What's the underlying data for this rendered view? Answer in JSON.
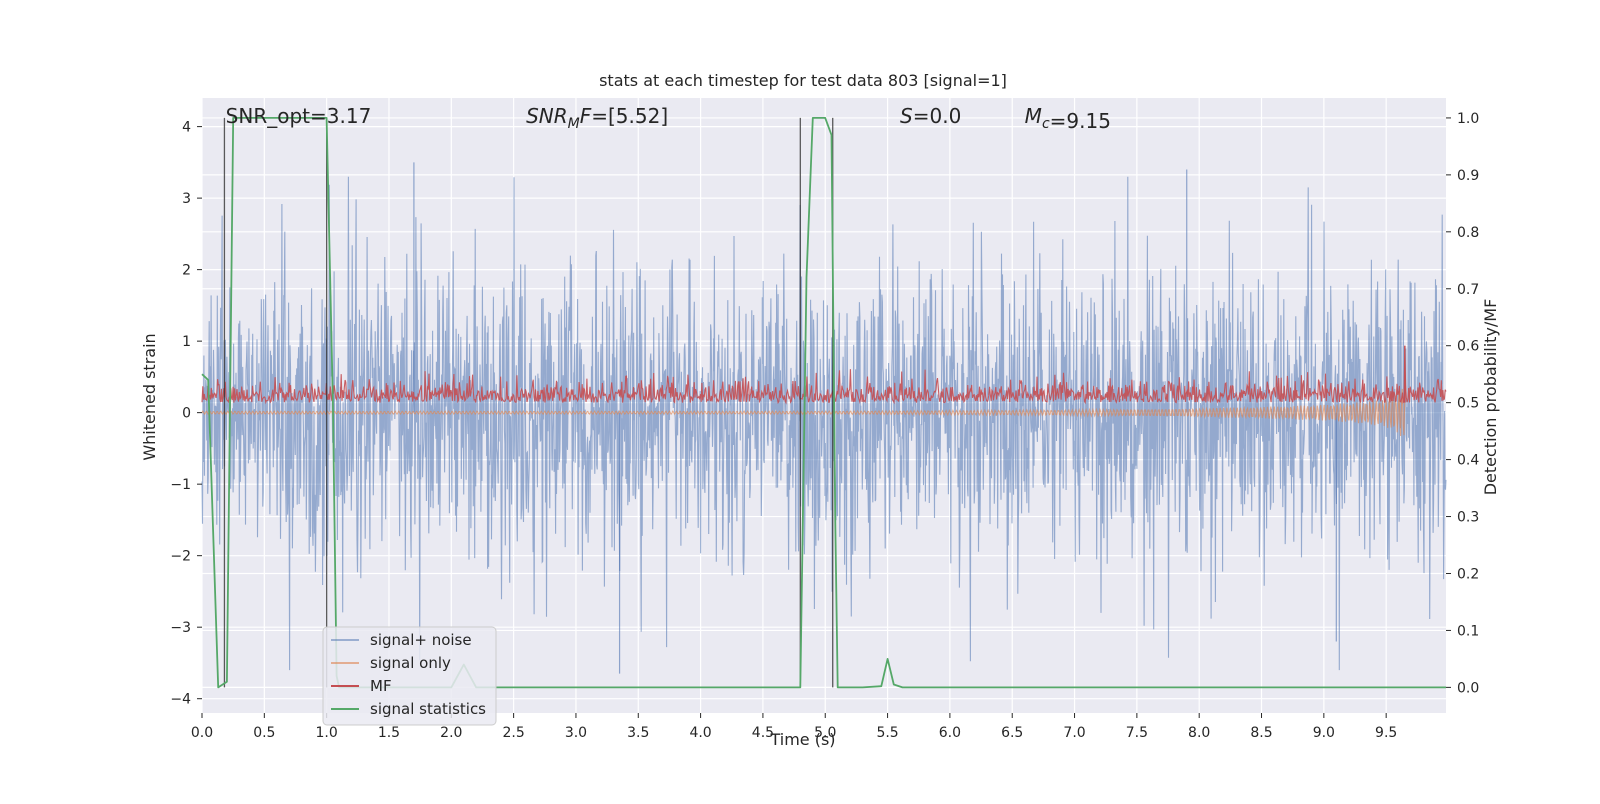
{
  "chart_data": {
    "type": "line",
    "title": "stats at each timestep for test data 803 [signal=1]",
    "xlabel": "Time (s)",
    "ylabel_left": "Whitened strain",
    "ylabel_right": "Detection probability/MF",
    "xlim": [
      0.0,
      9.98
    ],
    "ylim_left": [
      -4.2,
      4.4
    ],
    "ylim_right": [
      -0.045,
      1.035
    ],
    "x_ticks": [
      0.0,
      0.5,
      1.0,
      1.5,
      2.0,
      2.5,
      3.0,
      3.5,
      4.0,
      4.5,
      5.0,
      5.5,
      6.0,
      6.5,
      7.0,
      7.5,
      8.0,
      8.5,
      9.0,
      9.5
    ],
    "x_tick_labels": [
      "0.0",
      "0.5",
      "1.0",
      "1.5",
      "2.0",
      "2.5",
      "3.0",
      "3.5",
      "4.0",
      "4.5",
      "5.0",
      "5.5",
      "6.0",
      "6.5",
      "7.0",
      "7.5",
      "8.0",
      "8.5",
      "9.0",
      "9.5"
    ],
    "y_left_ticks": [
      4,
      3,
      2,
      1,
      0,
      -1,
      -2,
      -3,
      -4
    ],
    "y_left_tick_labels": [
      "4",
      "3",
      "2",
      "1",
      "0",
      "−1",
      "−2",
      "−3",
      "−4"
    ],
    "y_right_ticks": [
      1.0,
      0.9,
      0.8,
      0.7,
      0.6,
      0.5,
      0.4,
      0.3,
      0.2,
      0.1,
      0.0
    ],
    "y_right_tick_labels": [
      "1.0",
      "0.9",
      "0.8",
      "0.7",
      "0.6",
      "0.5",
      "0.4",
      "0.3",
      "0.2",
      "0.1",
      "0.0"
    ],
    "grid": true,
    "legend_position": "lower-left",
    "annotations": [
      {
        "text": "SNR_opt=3.17",
        "x": 0.19
      },
      {
        "text": "SNR_MF=[5.52]",
        "x": 2.6
      },
      {
        "text": "S=0.0",
        "x": 5.6
      },
      {
        "text": "M_c=9.15",
        "x": 6.6
      }
    ],
    "vertical_lines": [
      0.18,
      1.0,
      4.8,
      5.06
    ],
    "series": [
      {
        "name": "signal+ noise",
        "axis": "left",
        "color": "#4c72b0",
        "style": "dense noise band",
        "band_core": [
          -1.3,
          1.3
        ],
        "notable_peaks": [
          {
            "x": 1.7,
            "y": 3.5
          },
          {
            "x": 3.35,
            "y": -3.65
          },
          {
            "x": 7.9,
            "y": 3.4
          },
          {
            "x": 9.1,
            "y": -3.2
          }
        ]
      },
      {
        "name": "signal only",
        "axis": "left",
        "color": "#dd8452",
        "style": "chirp",
        "x": [
          0.0,
          1.0,
          2.0,
          3.0,
          4.0,
          5.0,
          6.0,
          7.0,
          8.0,
          8.5,
          9.0,
          9.3,
          9.5,
          9.6,
          9.65
        ],
        "amplitude": [
          0.02,
          0.02,
          0.02,
          0.02,
          0.02,
          0.02,
          0.03,
          0.04,
          0.06,
          0.08,
          0.11,
          0.15,
          0.2,
          0.3,
          0.4
        ]
      },
      {
        "name": "MF",
        "axis": "right",
        "color": "#c44e52",
        "style": "noisy band",
        "baseline": 0.5,
        "typical_range": [
          0.49,
          0.56
        ],
        "peak": {
          "x": 9.65,
          "y": 0.6
        }
      },
      {
        "name": "signal statistics",
        "axis": "right",
        "color": "#55a868",
        "x": [
          0.0,
          0.05,
          0.13,
          0.2,
          0.25,
          0.3,
          0.5,
          0.75,
          1.0,
          1.05,
          1.08,
          1.1,
          1.2,
          2.0,
          2.1,
          2.15,
          2.2,
          3.0,
          4.0,
          4.8,
          4.85,
          4.9,
          5.0,
          5.05,
          5.08,
          5.1,
          5.12,
          5.2,
          5.3,
          5.45,
          5.5,
          5.55,
          5.62,
          6.0,
          7.0,
          8.0,
          9.0,
          9.98
        ],
        "y": [
          0.55,
          0.54,
          0.0,
          0.01,
          1.0,
          1.0,
          1.0,
          1.0,
          1.0,
          0.5,
          0.02,
          0.0,
          0.0,
          0.0,
          0.04,
          0.02,
          0.0,
          0.0,
          0.0,
          0.0,
          0.72,
          1.0,
          1.0,
          0.97,
          0.3,
          0.0,
          0.0,
          0.0,
          0.0,
          0.002,
          0.05,
          0.005,
          0.0,
          0.0,
          0.0,
          0.0,
          0.0,
          0.0
        ]
      }
    ]
  }
}
